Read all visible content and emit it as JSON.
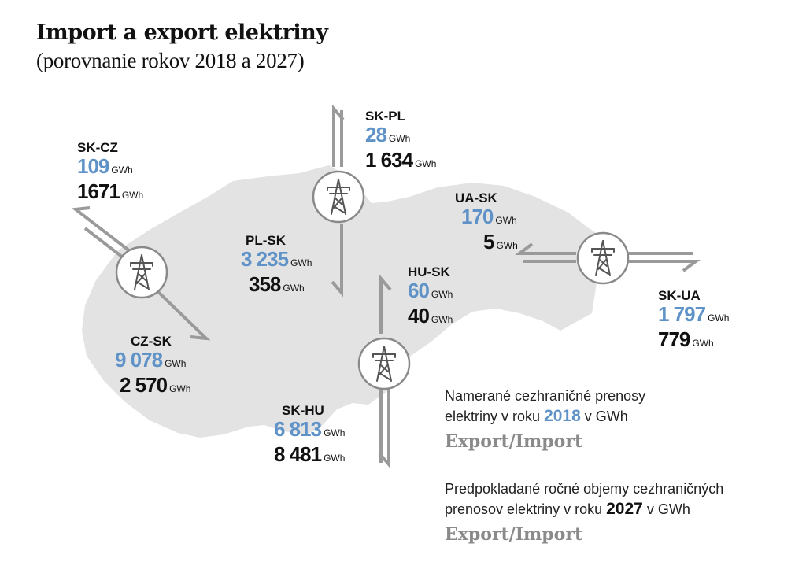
{
  "title": "Import a export elektriny",
  "subtitle": "(porovnanie rokov 2018 a 2027)",
  "unit": "GWh",
  "flows": {
    "sk_cz": {
      "code": "SK-CZ",
      "v2018": "109",
      "v2027": "1671"
    },
    "cz_sk": {
      "code": "CZ-SK",
      "v2018": "9 078",
      "v2027": "2 570"
    },
    "sk_pl": {
      "code": "SK-PL",
      "v2018": "28",
      "v2027": "1 634"
    },
    "pl_sk": {
      "code": "PL-SK",
      "v2018": "3 235",
      "v2027": "358"
    },
    "hu_sk": {
      "code": "HU-SK",
      "v2018": "60",
      "v2027": "40"
    },
    "sk_hu": {
      "code": "SK-HU",
      "v2018": "6 813",
      "v2027": "8 481"
    },
    "ua_sk": {
      "code": "UA-SK",
      "v2018": "170",
      "v2027": "5"
    },
    "sk_ua": {
      "code": "SK-UA",
      "v2018": "1 797",
      "v2027": "779"
    }
  },
  "legend": {
    "l1_a": "Namerané cezhraničné prenosy",
    "l1_b": "elektriny v roku",
    "l1_year": "2018",
    "l1_c": "v GWh",
    "l1_ei": "Export/Import",
    "l2_a": "Predpokladané ročné objemy cezhraničných",
    "l2_b": "prenosov elektriny v roku",
    "l2_year": "2027",
    "l2_c": "v GWh",
    "l2_ei": "Export/Import"
  },
  "colors": {
    "land": "#e3e3e3",
    "arrow": "#9a9a9a",
    "value_2018": "#5f93c8",
    "value_2027": "#111111",
    "export_import_label": "#8a8a8a"
  },
  "icons": [
    "pylon-icon"
  ]
}
